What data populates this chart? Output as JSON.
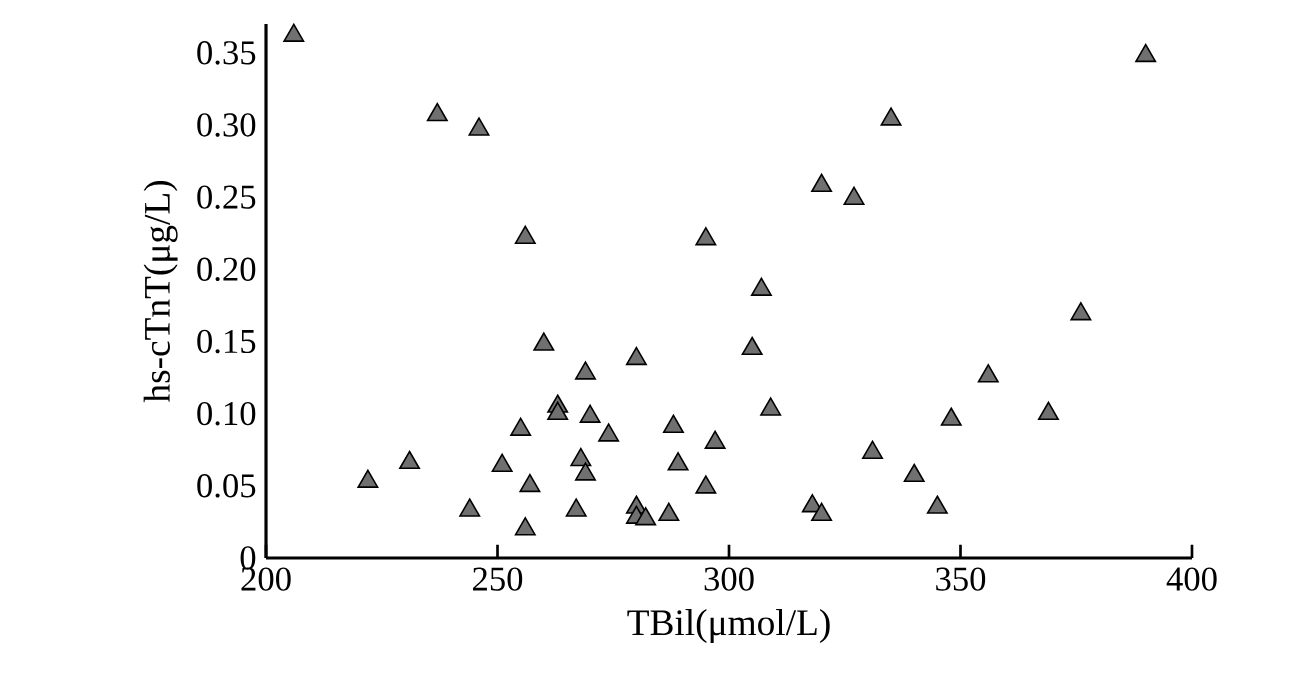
{
  "chart_data": {
    "type": "scatter",
    "xlabel": "TBil(μmol/L)",
    "ylabel": "hs-cTnT(μg/L)",
    "xlim": [
      200,
      400
    ],
    "xticks": [
      200,
      250,
      300,
      350,
      400
    ],
    "ylim": [
      0,
      0.37
    ],
    "yticks": [
      0,
      0.05,
      {
        "value": 0.1,
        "label": "0.10"
      },
      0.15,
      {
        "value": 0.2,
        "label": "0.20"
      },
      0.25,
      {
        "value": 0.3,
        "label": "0.30"
      },
      0.35
    ],
    "marker": "triangle",
    "series": [
      {
        "color": "#707070",
        "x": [
          206,
          237,
          246,
          256,
          295,
          222,
          231,
          244,
          251,
          255,
          256,
          257,
          260,
          263,
          263,
          267,
          268,
          269,
          269,
          270,
          274,
          280,
          280,
          280,
          282,
          287,
          288,
          289,
          295,
          297,
          305,
          307,
          309,
          318,
          320,
          320,
          327,
          331,
          335,
          340,
          345,
          348,
          356,
          369,
          376,
          390
        ],
        "values": [
          0.362,
          0.307,
          0.297,
          0.222,
          0.221,
          0.053,
          0.066,
          0.033,
          0.064,
          0.089,
          0.02,
          0.05,
          0.148,
          0.105,
          0.1,
          0.033,
          0.068,
          0.128,
          0.058,
          0.098,
          0.085,
          0.138,
          0.035,
          0.028,
          0.027,
          0.03,
          0.091,
          0.065,
          0.049,
          0.08,
          0.145,
          0.186,
          0.103,
          0.036,
          0.03,
          0.258,
          0.249,
          0.073,
          0.304,
          0.057,
          0.035,
          0.096,
          0.126,
          0.1,
          0.169,
          0.348
        ]
      }
    ]
  }
}
